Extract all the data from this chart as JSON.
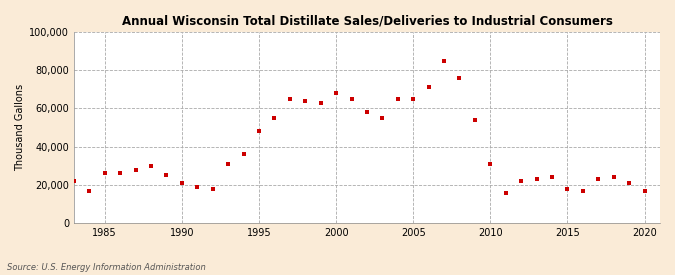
{
  "title": "Annual Wisconsin Total Distillate Sales/Deliveries to Industrial Consumers",
  "ylabel": "Thousand Gallons",
  "source": "Source: U.S. Energy Information Administration",
  "background_color": "#faebd7",
  "plot_background_color": "#ffffff",
  "marker_color": "#cc0000",
  "marker": "s",
  "marker_size": 3.5,
  "xlim": [
    1983,
    2021
  ],
  "ylim": [
    0,
    100000
  ],
  "yticks": [
    0,
    20000,
    40000,
    60000,
    80000,
    100000
  ],
  "xticks": [
    1985,
    1990,
    1995,
    2000,
    2005,
    2010,
    2015,
    2020
  ],
  "years": [
    1983,
    1984,
    1985,
    1986,
    1987,
    1988,
    1989,
    1990,
    1991,
    1992,
    1993,
    1994,
    1995,
    1996,
    1997,
    1998,
    1999,
    2000,
    2001,
    2002,
    2003,
    2004,
    2005,
    2006,
    2007,
    2008,
    2009,
    2010,
    2011,
    2012,
    2013,
    2014,
    2015,
    2016,
    2017,
    2018,
    2019,
    2020
  ],
  "values": [
    22000,
    17000,
    26000,
    26000,
    28000,
    30000,
    25000,
    21000,
    19000,
    18000,
    31000,
    36000,
    48000,
    55000,
    65000,
    64000,
    63000,
    68000,
    65000,
    58000,
    55000,
    65000,
    65000,
    71000,
    85000,
    76000,
    54000,
    31000,
    16000,
    22000,
    23000,
    24000,
    18000,
    17000,
    23000,
    24000,
    21000,
    17000
  ]
}
